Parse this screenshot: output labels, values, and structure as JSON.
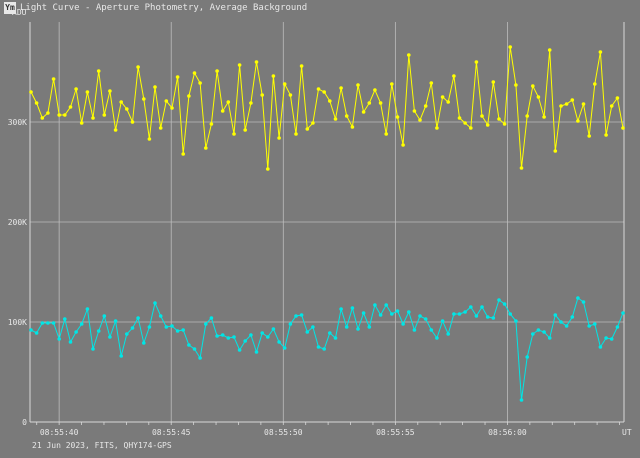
{
  "window": {
    "icon_label": "Ym",
    "title": "Light Curve - Aperture Photometry, Average Background"
  },
  "footer": {
    "caption": "21 Jun 2023, FITS, QHY174-GPS"
  },
  "chart_data": {
    "type": "line",
    "ylabel": "ADU",
    "xlabel": "UT",
    "y_ticks": [
      {
        "value": 0,
        "label": "0"
      },
      {
        "value": 100000,
        "label": "100K"
      },
      {
        "value": 200000,
        "label": "200K"
      },
      {
        "value": 300000,
        "label": "300K"
      }
    ],
    "x_ticks": [
      "08:55:40",
      "08:55:45",
      "08:55:50",
      "08:55:55",
      "08:56:00"
    ],
    "ylim": [
      0,
      400000
    ],
    "x_range_seconds_of_0855": [
      38.7,
      65.2
    ],
    "grid": true,
    "series": [
      {
        "color": "#ffff00",
        "values": [
          330000,
          319000,
          304000,
          309000,
          343000,
          307000,
          307000,
          315000,
          333000,
          299000,
          330000,
          304000,
          351000,
          307000,
          331000,
          292000,
          320000,
          313000,
          300000,
          355000,
          323000,
          283000,
          335000,
          294000,
          321000,
          314000,
          345000,
          268000,
          326000,
          349000,
          339000,
          274000,
          298000,
          351000,
          311000,
          320000,
          288000,
          357000,
          292000,
          319000,
          360000,
          327000,
          253000,
          346000,
          284000,
          338000,
          327000,
          288000,
          356000,
          293000,
          299000,
          333000,
          330000,
          321000,
          303000,
          334000,
          306000,
          295000,
          337000,
          310000,
          319000,
          332000,
          319000,
          288000,
          338000,
          305000,
          277000,
          367000,
          311000,
          302000,
          316000,
          339000,
          294000,
          325000,
          320000,
          346000,
          304000,
          299000,
          294000,
          360000,
          306000,
          297000,
          340000,
          303000,
          298000,
          375000,
          337000,
          254000,
          306000,
          336000,
          325000,
          305000,
          372000,
          271000,
          316000,
          318000,
          322000,
          301000,
          318000,
          286000,
          338000,
          370000,
          287000,
          316000,
          324000,
          294000
        ],
        "type": "line"
      },
      {
        "color": "#00e6e6",
        "values": [
          92000,
          89000,
          99000,
          99000,
          99000,
          83000,
          103000,
          80000,
          90000,
          98000,
          113000,
          73000,
          91000,
          106000,
          85000,
          101000,
          66000,
          88000,
          94000,
          104000,
          79000,
          95000,
          119000,
          106000,
          95000,
          96000,
          91000,
          92000,
          77000,
          73000,
          64000,
          98000,
          104000,
          86000,
          87000,
          84000,
          85000,
          72000,
          81000,
          87000,
          70000,
          89000,
          85000,
          93000,
          80000,
          74000,
          98000,
          106000,
          107000,
          90000,
          95000,
          75000,
          73000,
          89000,
          84000,
          113000,
          95000,
          114000,
          93000,
          109000,
          95000,
          117000,
          107000,
          117000,
          108000,
          111000,
          98000,
          110000,
          92000,
          106000,
          103000,
          92000,
          84000,
          101000,
          88000,
          108000,
          108000,
          110000,
          115000,
          106000,
          115000,
          105000,
          104000,
          122000,
          118000,
          108000,
          101000,
          22000,
          65000,
          88000,
          92000,
          90000,
          84000,
          107000,
          100000,
          96000,
          105000,
          124000,
          120000,
          96000,
          98000,
          75000,
          84000,
          83000,
          95000,
          109000
        ],
        "type": "line"
      }
    ]
  }
}
